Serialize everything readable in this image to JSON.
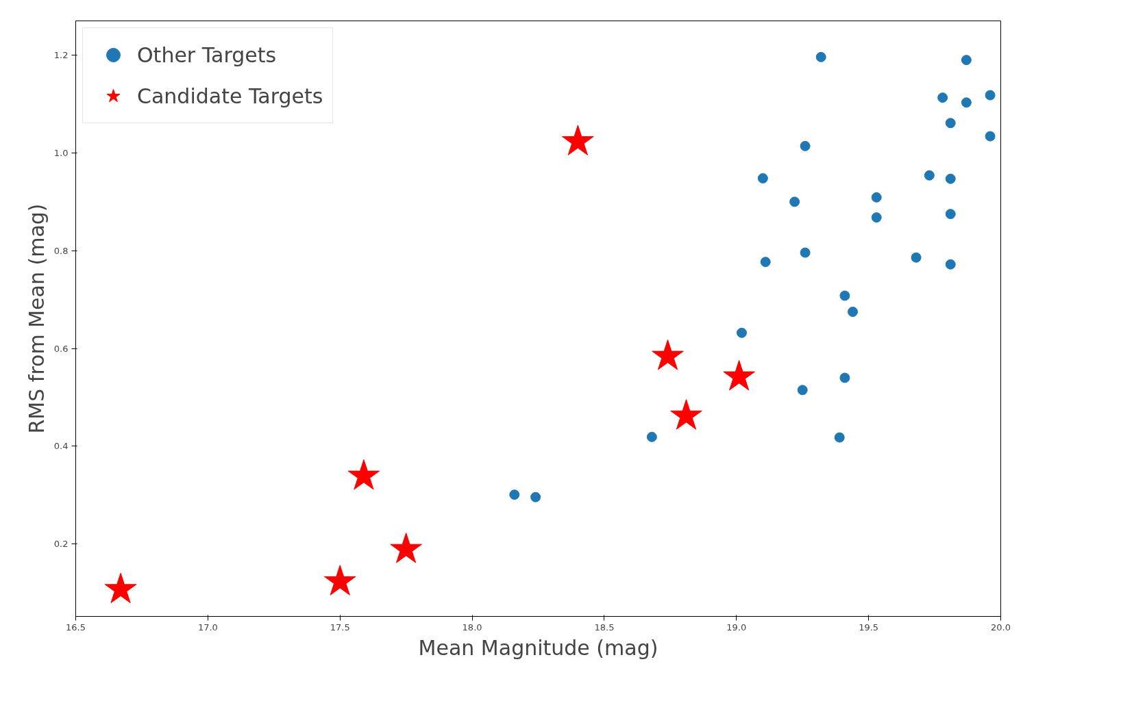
{
  "chart_data": {
    "type": "scatter",
    "xlabel": "Mean Magnitude (mag)",
    "ylabel": "RMS from Mean (mag)",
    "xlim": [
      16.5,
      20.0
    ],
    "ylim": [
      0.052,
      1.27
    ],
    "xticks": [
      16.5,
      {
        "value": 17,
        "label": "17.0"
      },
      17.5,
      {
        "value": 18,
        "label": "18.0"
      },
      18.5,
      {
        "value": 19,
        "label": "19.0"
      },
      19.5,
      {
        "value": 20,
        "label": "20.0"
      }
    ],
    "yticks": [
      0.2,
      0.4,
      0.6,
      0.8,
      {
        "value": 1,
        "label": "1.0"
      },
      1.2
    ],
    "grid": false,
    "legend": "top left",
    "series": [
      {
        "name": "Other Targets",
        "color": "#1f77b4",
        "marker": "circle",
        "x": [
          19.32,
          19.87,
          19.96,
          19.78,
          19.87,
          19.81,
          19.96,
          19.26,
          19.1,
          19.73,
          19.81,
          19.22,
          19.53,
          19.53,
          19.81,
          19.11,
          19.26,
          19.68,
          19.81,
          19.41,
          19.44,
          19.02,
          19.41,
          19.25,
          18.68,
          19.39,
          18.16,
          18.24
        ],
        "values": [
          1.196,
          1.19,
          1.118,
          1.113,
          1.103,
          1.061,
          1.034,
          1.014,
          0.948,
          0.954,
          0.947,
          0.9,
          0.909,
          0.868,
          0.875,
          0.777,
          0.796,
          0.786,
          0.772,
          0.708,
          0.675,
          0.632,
          0.54,
          0.515,
          0.419,
          0.418,
          0.301,
          0.296
        ]
      },
      {
        "name": "Candidate Targets",
        "color": "#ff0000",
        "marker": "star",
        "x": [
          18.4,
          18.74,
          19.01,
          18.81,
          17.59,
          17.75,
          17.5,
          16.67
        ],
        "values": [
          1.023,
          0.584,
          0.542,
          0.462,
          0.339,
          0.189,
          0.123,
          0.107
        ]
      }
    ]
  }
}
